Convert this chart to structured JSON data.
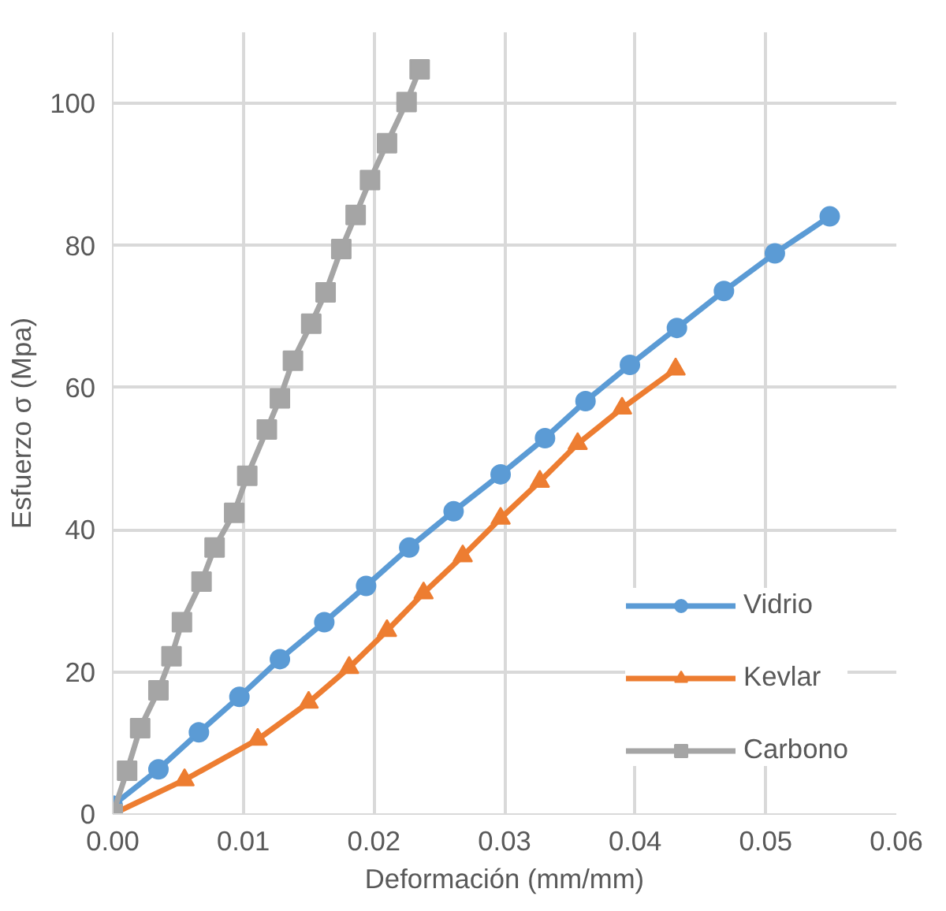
{
  "chart_data": {
    "type": "line",
    "xlabel": "Deformación (mm/mm)",
    "ylabel": "Esfuerzo σ (Mpa)",
    "xlim": [
      0,
      0.06
    ],
    "ylim": [
      0,
      110
    ],
    "xticks": [
      {
        "value": 0,
        "label": "0.00"
      },
      {
        "value": 0.01,
        "label": "0.01"
      },
      {
        "value": 0.02,
        "label": "0.02"
      },
      {
        "value": 0.03,
        "label": "0.03"
      },
      {
        "value": 0.04,
        "label": "0.04"
      },
      {
        "value": 0.05,
        "label": "0.05"
      },
      {
        "value": 0.06,
        "label": "0.06"
      }
    ],
    "yticks": [
      0,
      20,
      40,
      60,
      80,
      100
    ],
    "grid": true,
    "legend": "right",
    "line_style": "solid",
    "series": [
      {
        "name": "Vidrio",
        "color": "#5b9bd5",
        "marker": "circle",
        "x": [
          0,
          0.0035,
          0.0066,
          0.0097,
          0.0128,
          0.0162,
          0.0194,
          0.0227,
          0.0261,
          0.0297,
          0.0331,
          0.0362,
          0.0396,
          0.0432,
          0.0468,
          0.0507,
          0.0549
        ],
        "values": [
          1.2,
          6.3,
          11.5,
          16.5,
          21.8,
          27.0,
          32.1,
          37.5,
          42.6,
          47.8,
          52.9,
          58.1,
          63.2,
          68.4,
          73.6,
          78.9,
          84.1
        ]
      },
      {
        "name": "Kevlar",
        "color": "#ed7d31",
        "marker": "triangle",
        "x": [
          0,
          0.0055,
          0.0111,
          0.015,
          0.0181,
          0.021,
          0.0238,
          0.0268,
          0.0297,
          0.0327,
          0.0356,
          0.039,
          0.0431
        ],
        "values": [
          0,
          4.8,
          10.5,
          15.7,
          20.6,
          25.8,
          31.1,
          36.3,
          41.6,
          46.8,
          52.1,
          57.1,
          62.6
        ]
      },
      {
        "name": "Carbono",
        "color": "#a5a5a5",
        "marker": "square",
        "x": [
          0,
          0.0011,
          0.0021,
          0.0035,
          0.0045,
          0.0053,
          0.0068,
          0.0078,
          0.0093,
          0.0103,
          0.0118,
          0.0128,
          0.0138,
          0.0152,
          0.0163,
          0.0175,
          0.0186,
          0.0197,
          0.021,
          0.0225,
          0.0235
        ],
        "values": [
          0,
          6.1,
          12.1,
          17.4,
          22.2,
          27.0,
          32.7,
          37.5,
          42.4,
          47.6,
          54.1,
          58.5,
          63.8,
          69.0,
          73.4,
          79.5,
          84.3,
          89.2,
          94.4,
          100.2,
          104.8
        ]
      }
    ]
  }
}
